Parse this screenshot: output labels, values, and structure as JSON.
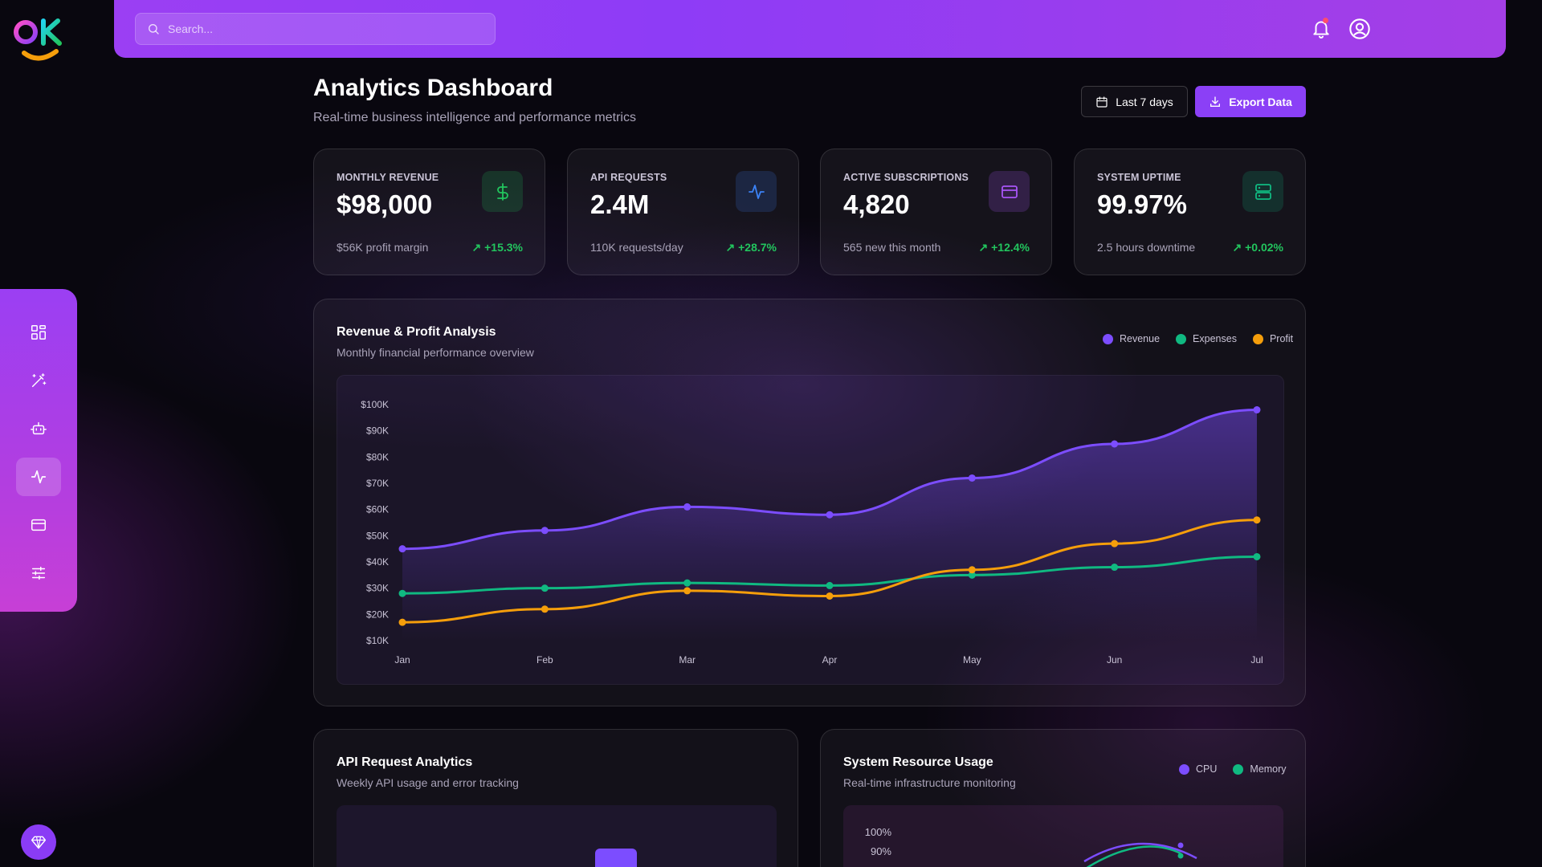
{
  "topbar": {
    "search_placeholder": "Search..."
  },
  "header": {
    "title": "Analytics Dashboard",
    "subtitle": "Real-time business intelligence and performance metrics",
    "range_button": "Last 7 days",
    "export_button": "Export Data"
  },
  "stats": [
    {
      "label": "MONTHLY REVENUE",
      "value": "$98,000",
      "sub": "$56K profit margin",
      "delta": "+15.3%",
      "icon": "dollar-icon",
      "color": "#22c55e"
    },
    {
      "label": "API REQUESTS",
      "value": "2.4M",
      "sub": "110K requests/day",
      "delta": "+28.7%",
      "icon": "activity-icon",
      "color": "#3b82f6"
    },
    {
      "label": "ACTIVE SUBSCRIPTIONS",
      "value": "4,820",
      "sub": "565 new this month",
      "delta": "+12.4%",
      "icon": "credit-card-icon",
      "color": "#a855f7"
    },
    {
      "label": "SYSTEM UPTIME",
      "value": "99.97%",
      "sub": "2.5 hours downtime",
      "delta": "+0.02%",
      "icon": "server-icon",
      "color": "#10b981"
    }
  ],
  "revenue_panel": {
    "title": "Revenue & Profit Analysis",
    "subtitle": "Monthly financial performance overview",
    "legend": [
      "Revenue",
      "Expenses",
      "Profit"
    ]
  },
  "api_panel": {
    "title": "API Request Analytics",
    "subtitle": "Weekly API usage and error tracking"
  },
  "resource_panel": {
    "title": "System Resource Usage",
    "subtitle": "Real-time infrastructure monitoring",
    "legend": [
      "CPU",
      "Memory"
    ],
    "ticks": [
      "100%",
      "90%"
    ]
  },
  "chart_data": {
    "type": "line",
    "categories": [
      "Jan",
      "Feb",
      "Mar",
      "Apr",
      "May",
      "Jun",
      "Jul"
    ],
    "series": [
      {
        "name": "Revenue",
        "color": "#7c4dff",
        "values": [
          45000,
          52000,
          61000,
          58000,
          72000,
          85000,
          98000
        ]
      },
      {
        "name": "Expenses",
        "color": "#10b981",
        "values": [
          28000,
          30000,
          32000,
          31000,
          35000,
          38000,
          42000
        ]
      },
      {
        "name": "Profit",
        "color": "#f59e0b",
        "values": [
          17000,
          22000,
          29000,
          27000,
          37000,
          47000,
          56000
        ]
      }
    ],
    "y_ticks": [
      "$100K",
      "$90K",
      "$80K",
      "$70K",
      "$60K",
      "$50K",
      "$40K",
      "$30K",
      "$20K",
      "$10K"
    ],
    "ylim": [
      10000,
      100000
    ],
    "grid": false
  },
  "colors": {
    "accent": "#8b40f6",
    "positive": "#22c55e"
  }
}
